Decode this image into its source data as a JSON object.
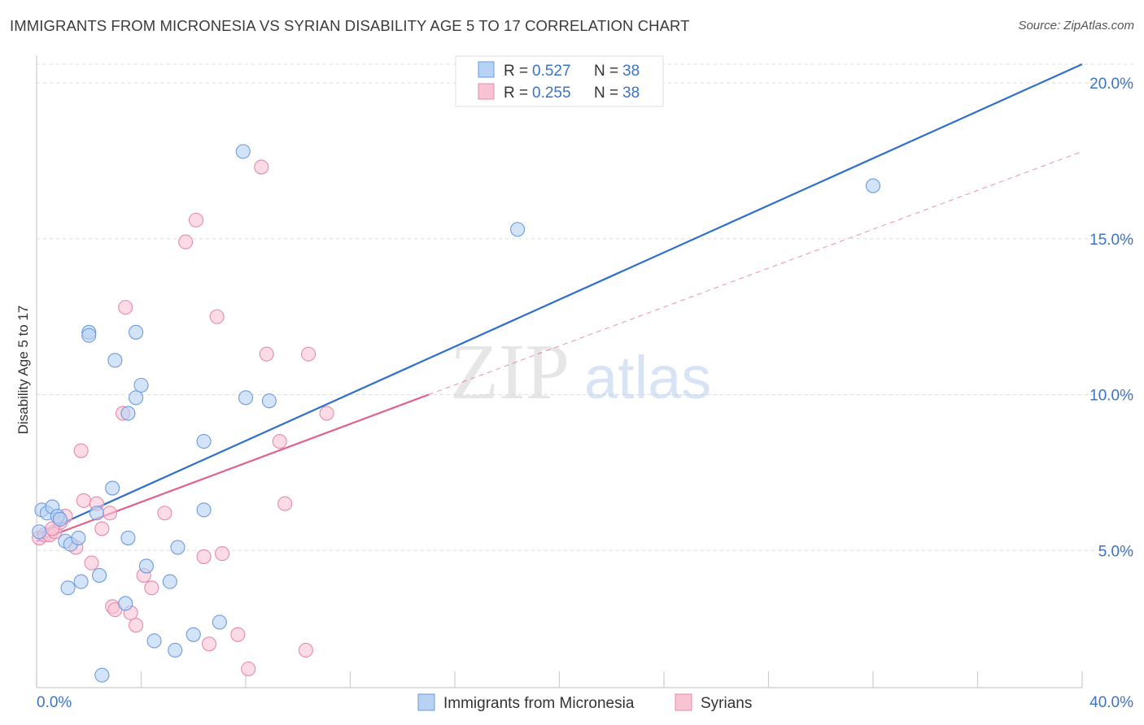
{
  "header": {
    "title": "IMMIGRANTS FROM MICRONESIA VS SYRIAN DISABILITY AGE 5 TO 17 CORRELATION CHART",
    "source": "Source: ZipAtlas.com"
  },
  "watermark": {
    "zip": "ZIP",
    "atlas": "atlas"
  },
  "colors": {
    "blue_fill": "#b8d2f3",
    "blue_stroke": "#6d9be0",
    "blue_line": "#2f6fcc",
    "pink_fill": "#f8c3d3",
    "pink_stroke": "#e68aa8",
    "pink_line": "#e0628e",
    "grid": "#dddddd",
    "axis_label": "#3b73c7"
  },
  "chart_data": {
    "type": "scatter",
    "title": "IMMIGRANTS FROM MICRONESIA VS SYRIAN DISABILITY AGE 5 TO 17 CORRELATION CHART",
    "xlabel": "",
    "ylabel": "Disability Age 5 to 17",
    "xlim": [
      0,
      40
    ],
    "ylim": [
      0.6,
      20.6
    ],
    "x_tick_labels": [
      "0.0%",
      "40.0%"
    ],
    "y_ticks": [
      5,
      10,
      15,
      20
    ],
    "y_tick_labels": [
      "5.0%",
      "10.0%",
      "15.0%",
      "20.0%"
    ],
    "grid": true,
    "legend_position": "top-center",
    "legend": [
      {
        "r_label": "R =",
        "r_value": "0.527",
        "n_label": "N =",
        "n_value": "38"
      },
      {
        "r_label": "R =",
        "r_value": "0.255",
        "n_label": "N =",
        "n_value": "38"
      }
    ],
    "series": [
      {
        "name": "Immigrants from Micronesia",
        "color": "blue",
        "points": [
          [
            0.2,
            6.3
          ],
          [
            0.4,
            6.2
          ],
          [
            0.6,
            6.4
          ],
          [
            0.8,
            6.1
          ],
          [
            0.9,
            6.0
          ],
          [
            1.1,
            5.3
          ],
          [
            1.3,
            5.2
          ],
          [
            1.6,
            5.4
          ],
          [
            1.2,
            3.8
          ],
          [
            1.7,
            4.0
          ],
          [
            2.4,
            4.2
          ],
          [
            2.5,
            1.0
          ],
          [
            2.0,
            12.0
          ],
          [
            2.0,
            11.9
          ],
          [
            3.0,
            11.1
          ],
          [
            3.8,
            12.0
          ],
          [
            3.5,
            9.4
          ],
          [
            3.8,
            9.9
          ],
          [
            4.0,
            10.3
          ],
          [
            2.9,
            7.0
          ],
          [
            2.3,
            6.2
          ],
          [
            3.5,
            5.4
          ],
          [
            4.2,
            4.5
          ],
          [
            4.5,
            2.1
          ],
          [
            5.1,
            4.0
          ],
          [
            5.3,
            1.8
          ],
          [
            5.4,
            5.1
          ],
          [
            6.0,
            2.3
          ],
          [
            6.4,
            8.5
          ],
          [
            6.4,
            6.3
          ],
          [
            7.0,
            2.7
          ],
          [
            7.9,
            17.8
          ],
          [
            8.0,
            9.9
          ],
          [
            8.9,
            9.8
          ],
          [
            3.4,
            3.3
          ],
          [
            18.4,
            15.3
          ],
          [
            32.0,
            16.7
          ],
          [
            0.1,
            5.6
          ]
        ],
        "trend": {
          "x": [
            0,
            40
          ],
          "y": [
            5.5,
            20.6
          ],
          "style": "solid"
        }
      },
      {
        "name": "Syrians",
        "color": "pink",
        "points": [
          [
            0.1,
            5.4
          ],
          [
            0.3,
            5.5
          ],
          [
            0.5,
            5.5
          ],
          [
            0.7,
            5.6
          ],
          [
            0.9,
            5.9
          ],
          [
            1.1,
            6.1
          ],
          [
            1.5,
            5.1
          ],
          [
            1.7,
            8.2
          ],
          [
            1.8,
            6.6
          ],
          [
            2.1,
            4.6
          ],
          [
            2.3,
            6.5
          ],
          [
            2.5,
            5.7
          ],
          [
            2.8,
            6.2
          ],
          [
            2.9,
            3.2
          ],
          [
            3.0,
            3.1
          ],
          [
            3.3,
            9.4
          ],
          [
            3.4,
            12.8
          ],
          [
            3.6,
            3.0
          ],
          [
            3.8,
            2.6
          ],
          [
            4.1,
            4.2
          ],
          [
            4.4,
            3.8
          ],
          [
            4.9,
            6.2
          ],
          [
            5.7,
            14.9
          ],
          [
            6.1,
            15.6
          ],
          [
            6.4,
            4.8
          ],
          [
            6.6,
            2.0
          ],
          [
            6.9,
            12.5
          ],
          [
            7.1,
            4.9
          ],
          [
            7.7,
            2.3
          ],
          [
            8.1,
            1.2
          ],
          [
            8.6,
            17.3
          ],
          [
            8.8,
            11.3
          ],
          [
            9.3,
            8.5
          ],
          [
            9.5,
            6.5
          ],
          [
            10.3,
            1.8
          ],
          [
            10.4,
            11.3
          ],
          [
            11.1,
            9.4
          ],
          [
            0.6,
            5.7
          ]
        ],
        "trend_solid": {
          "x": [
            0,
            15
          ],
          "y": [
            5.3,
            10.0
          ]
        },
        "trend_dashed": {
          "x": [
            15,
            40
          ],
          "y": [
            10.0,
            17.8
          ]
        }
      }
    ]
  }
}
